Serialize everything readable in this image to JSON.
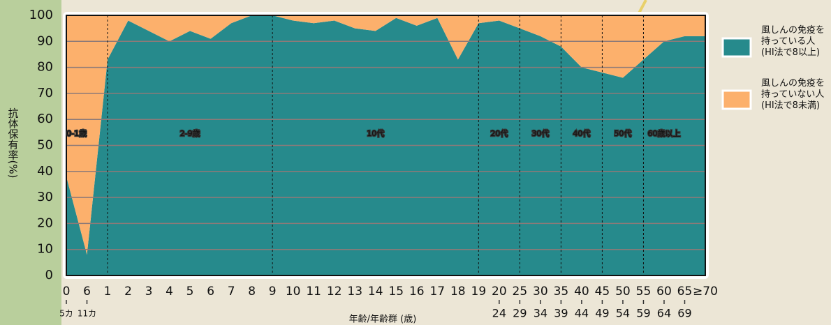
{
  "chart_data": {
    "type": "stacked_area",
    "y_label": "抗体保有率(%)",
    "x_label": "年齢/年齢群 (歳)",
    "categories": [
      "0",
      "6",
      "1",
      "2",
      "3",
      "4",
      "5",
      "6",
      "7",
      "8",
      "9",
      "10",
      "11",
      "12",
      "13",
      "14",
      "15",
      "16",
      "17",
      "18",
      "19",
      "20",
      "25",
      "30",
      "35",
      "40",
      "45",
      "50",
      "55",
      "60",
      "65",
      "≥70"
    ],
    "category_sublabels": [
      "5カ",
      "11カ",
      null,
      null,
      null,
      null,
      null,
      null,
      null,
      null,
      null,
      null,
      null,
      null,
      null,
      null,
      null,
      null,
      null,
      null,
      null,
      "24",
      "29",
      "34",
      "39",
      "44",
      "49",
      "54",
      "59",
      "64",
      "69",
      null
    ],
    "series": [
      {
        "name": "風しんの免疫を\n持っている人\n(HI法で8以上)",
        "color": "#268a8c",
        "values": [
          38,
          8,
          83,
          98,
          94,
          90,
          94,
          91,
          97,
          100,
          100,
          98,
          97,
          98,
          95,
          94,
          99,
          96,
          99,
          83,
          97,
          98,
          95,
          92,
          88,
          80,
          78,
          76,
          83,
          90,
          92,
          92
        ]
      },
      {
        "name": "風しんの免疫を\n持っていない人\n(HI法で8未満)",
        "color": "#fcb06c",
        "values": [
          62,
          92,
          17,
          2,
          6,
          10,
          6,
          9,
          3,
          0,
          0,
          2,
          3,
          2,
          5,
          6,
          1,
          4,
          1,
          17,
          3,
          2,
          5,
          8,
          12,
          20,
          22,
          24,
          17,
          10,
          8,
          8
        ]
      }
    ],
    "age_groups": [
      {
        "label": "0-1歳",
        "from": 0,
        "to": 3
      },
      {
        "label": "2-9歳",
        "from": 3,
        "to": 11
      },
      {
        "label": "10代",
        "from": 11,
        "to": 21
      },
      {
        "label": "20代",
        "from": 21,
        "to": 23
      },
      {
        "label": "30代",
        "from": 23,
        "to": 25
      },
      {
        "label": "40代",
        "from": 25,
        "to": 27
      },
      {
        "label": "50代",
        "from": 27,
        "to": 29
      },
      {
        "label": "60歳以上",
        "from": 29,
        "to": 31
      }
    ],
    "ylim": [
      0,
      100
    ],
    "yticks": [
      0,
      10,
      20,
      30,
      40,
      50,
      60,
      70,
      80,
      90,
      100
    ],
    "grid": true
  }
}
